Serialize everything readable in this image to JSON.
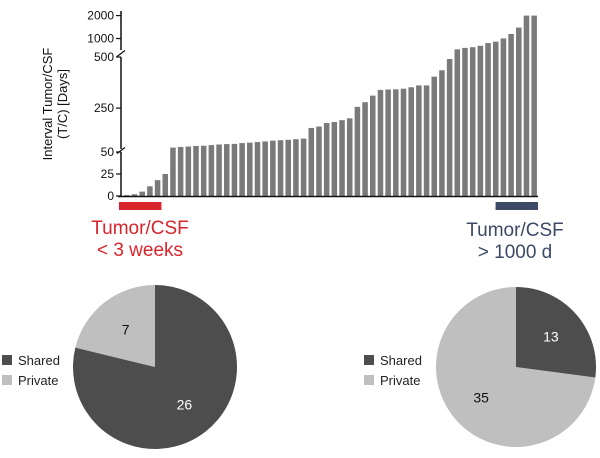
{
  "colors": {
    "bar": "#7a7a7a",
    "shared": "#4d4d4d",
    "private": "#bfbfbf",
    "short_interval": "#d9242b",
    "long_interval": "#3c4a66"
  },
  "chart_data": [
    {
      "type": "bar",
      "name": "interval-bars",
      "ylabel_lines": [
        "Interval Tumor/CSF",
        "(T/C) [Days]"
      ],
      "y_segments": [
        {
          "range": [
            0,
            50
          ],
          "ticks": [
            0,
            25,
            50
          ]
        },
        {
          "range": [
            50,
            500
          ],
          "ticks": [
            250,
            500
          ]
        },
        {
          "range": [
            500,
            2200
          ],
          "ticks": [
            1000,
            2000
          ]
        }
      ],
      "values": [
        1,
        2,
        5,
        11,
        18,
        25,
        57,
        60,
        62,
        65,
        66,
        69,
        72,
        74,
        75,
        79,
        81,
        84,
        87,
        91,
        93,
        95,
        98,
        101,
        153,
        160,
        177,
        182,
        191,
        200,
        256,
        279,
        311,
        339,
        341,
        342,
        345,
        352,
        361,
        361,
        404,
        435,
        490,
        530,
        592,
        622,
        684,
        803,
        863,
        1003,
        1199,
        1477,
        2000,
        2000
      ]
    },
    {
      "type": "pie",
      "name": "short-interval-pie",
      "slices": [
        {
          "label": "Shared",
          "value": 26
        },
        {
          "label": "Private",
          "value": 7
        }
      ]
    },
    {
      "type": "pie",
      "name": "long-interval-pie",
      "slices": [
        {
          "label": "Shared",
          "value": 13
        },
        {
          "label": "Private",
          "value": 35
        }
      ]
    }
  ],
  "captions": {
    "left": [
      "Tumor/CSF",
      "< 3 weeks"
    ],
    "right": [
      "Tumor/CSF",
      "> 1000 d"
    ]
  },
  "legend": {
    "shared": "Shared",
    "private": "Private"
  }
}
